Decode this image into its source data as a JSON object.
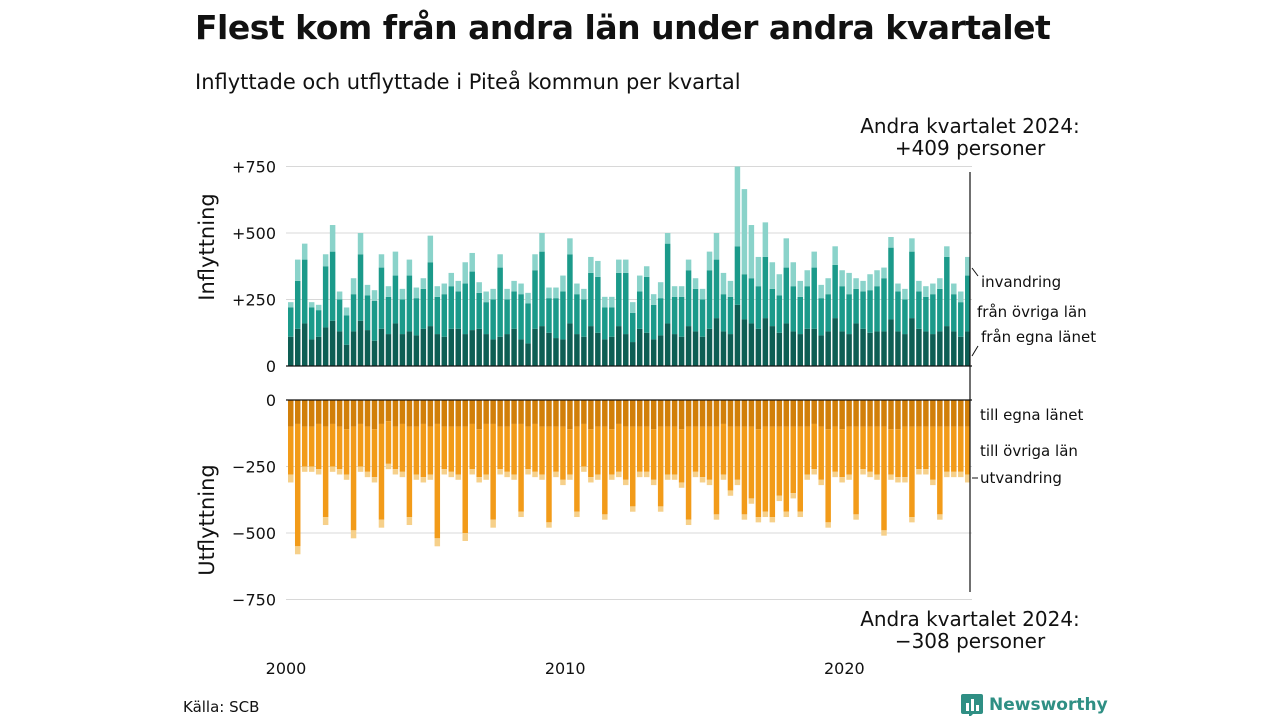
{
  "title": "Flest kom från andra län under andra kvartalet",
  "subtitle": "Inflyttade och utflyttade i Piteå kommun per kvartal",
  "source": "Källa: SCB",
  "brand": "Newsworthy",
  "colors": {
    "in_own": "#0e5e54",
    "in_other": "#1b9a8a",
    "in_abroad": "#8ad3ca",
    "out_own": "#d17f0a",
    "out_other": "#f29b19",
    "out_abroad": "#f6d08a",
    "brand": "#2f8f84"
  },
  "annotations": {
    "top": [
      "Andra kvartalet 2024:",
      "+409 personer"
    ],
    "bottom": [
      "Andra kvartalet 2024:",
      "−308 personer"
    ]
  },
  "chart_data": {
    "type": "bar",
    "stacked": true,
    "diverging": true,
    "x_start": "2000 Q1",
    "x_end": "2024 Q2",
    "x_ticks": [
      "2000",
      "2010",
      "2020"
    ],
    "inflow": {
      "ylabel": "Inflyttning",
      "yticks": [
        "+750",
        "+500",
        "+250",
        "0"
      ],
      "ylim": [
        0,
        750
      ],
      "series_names": [
        "från egna länet",
        "från övriga län",
        "invandring"
      ],
      "from_own_county": [
        110,
        140,
        160,
        100,
        110,
        145,
        170,
        130,
        80,
        130,
        170,
        135,
        95,
        140,
        120,
        160,
        120,
        130,
        115,
        140,
        150,
        120,
        110,
        140,
        140,
        120,
        135,
        140,
        120,
        100,
        110,
        120,
        140,
        100,
        85,
        140,
        150,
        125,
        105,
        100,
        160,
        120,
        110,
        150,
        125,
        100,
        110,
        150,
        120,
        90,
        140,
        125,
        100,
        115,
        160,
        120,
        110,
        150,
        130,
        110,
        140,
        180,
        130,
        120,
        230,
        175,
        160,
        140,
        180,
        150,
        125,
        160,
        130,
        120,
        140,
        140,
        115,
        130,
        180,
        130,
        120,
        160,
        140,
        125,
        130,
        130,
        175,
        130,
        120,
        180,
        140,
        130,
        120,
        130,
        150,
        130,
        110,
        130
      ],
      "from_other_counties": [
        110,
        180,
        240,
        120,
        100,
        230,
        260,
        120,
        110,
        140,
        250,
        130,
        150,
        230,
        140,
        180,
        130,
        210,
        140,
        150,
        240,
        140,
        160,
        160,
        140,
        190,
        220,
        135,
        120,
        150,
        260,
        130,
        140,
        170,
        150,
        220,
        280,
        130,
        150,
        180,
        260,
        150,
        140,
        200,
        210,
        120,
        110,
        200,
        230,
        110,
        140,
        210,
        130,
        140,
        300,
        140,
        150,
        210,
        160,
        140,
        220,
        220,
        140,
        140,
        220,
        170,
        170,
        160,
        230,
        140,
        140,
        210,
        170,
        140,
        160,
        230,
        140,
        140,
        200,
        170,
        150,
        130,
        140,
        160,
        170,
        200,
        270,
        150,
        130,
        250,
        140,
        130,
        150,
        160,
        260,
        140,
        130,
        210
      ],
      "immigration": [
        20,
        80,
        60,
        20,
        20,
        45,
        100,
        30,
        30,
        60,
        80,
        40,
        40,
        50,
        40,
        90,
        40,
        60,
        40,
        40,
        100,
        40,
        40,
        50,
        40,
        80,
        70,
        40,
        40,
        40,
        50,
        40,
        40,
        40,
        40,
        60,
        70,
        40,
        40,
        60,
        60,
        40,
        40,
        60,
        60,
        40,
        40,
        50,
        50,
        40,
        60,
        40,
        40,
        60,
        40,
        40,
        40,
        40,
        40,
        40,
        70,
        100,
        80,
        60,
        300,
        320,
        200,
        110,
        130,
        100,
        80,
        110,
        90,
        60,
        60,
        60,
        50,
        60,
        70,
        60,
        80,
        40,
        40,
        60,
        60,
        40,
        40,
        30,
        40,
        50,
        40,
        40,
        40,
        40,
        40,
        40,
        40,
        70
      ]
    },
    "outflow": {
      "ylabel": "Utflyttning",
      "yticks": [
        "0",
        "−250",
        "−500",
        "−750"
      ],
      "ylim": [
        -750,
        0
      ],
      "series_names": [
        "till egna länet",
        "till övriga län",
        "utvandring"
      ],
      "to_own_county": [
        -100,
        -90,
        -100,
        -100,
        -90,
        -100,
        -90,
        -100,
        -110,
        -100,
        -90,
        -100,
        -110,
        -90,
        -80,
        -100,
        -90,
        -100,
        -100,
        -90,
        -100,
        -90,
        -100,
        -100,
        -100,
        -100,
        -90,
        -110,
        -90,
        -90,
        -100,
        -100,
        -90,
        -90,
        -100,
        -90,
        -100,
        -100,
        -100,
        -100,
        -110,
        -100,
        -90,
        -110,
        -100,
        -100,
        -110,
        -90,
        -100,
        -100,
        -100,
        -100,
        -110,
        -100,
        -100,
        -100,
        -110,
        -100,
        -100,
        -100,
        -100,
        -100,
        -90,
        -100,
        -100,
        -100,
        -100,
        -110,
        -100,
        -100,
        -100,
        -100,
        -100,
        -100,
        -100,
        -90,
        -100,
        -110,
        -100,
        -110,
        -100,
        -100,
        -100,
        -100,
        -100,
        -100,
        -110,
        -110,
        -100,
        -100,
        -100,
        -100,
        -100,
        -100,
        -100,
        -100,
        -100,
        -100
      ],
      "to_other_counties": [
        -180,
        -460,
        -150,
        -150,
        -170,
        -340,
        -160,
        -160,
        -170,
        -390,
        -160,
        -170,
        -180,
        -360,
        -160,
        -160,
        -180,
        -340,
        -180,
        -200,
        -180,
        -430,
        -160,
        -170,
        -180,
        -400,
        -170,
        -180,
        -190,
        -360,
        -160,
        -170,
        -190,
        -330,
        -160,
        -180,
        -180,
        -360,
        -170,
        -200,
        -170,
        -320,
        -160,
        -180,
        -180,
        -330,
        -170,
        -180,
        -200,
        -300,
        -170,
        -170,
        -190,
        -300,
        -180,
        -180,
        -200,
        -350,
        -170,
        -190,
        -200,
        -330,
        -190,
        -240,
        -200,
        -330,
        -270,
        -330,
        -320,
        -340,
        -260,
        -320,
        -250,
        -320,
        -180,
        -170,
        -200,
        -350,
        -170,
        -180,
        -180,
        -330,
        -160,
        -170,
        -180,
        -390,
        -170,
        -180,
        -190,
        -340,
        -160,
        -160,
        -200,
        -330,
        -170,
        -170,
        -170,
        -180
      ],
      "emigration": [
        -30,
        -30,
        -20,
        -20,
        -20,
        -30,
        -20,
        -20,
        -20,
        -30,
        -20,
        -20,
        -20,
        -30,
        -20,
        -20,
        -20,
        -30,
        -20,
        -20,
        -20,
        -30,
        -20,
        -20,
        -20,
        -30,
        -20,
        -20,
        -20,
        -30,
        -20,
        -20,
        -20,
        -20,
        -20,
        -20,
        -20,
        -20,
        -20,
        -20,
        -20,
        -20,
        -20,
        -20,
        -20,
        -20,
        -20,
        -20,
        -20,
        -20,
        -20,
        -20,
        -20,
        -20,
        -20,
        -20,
        -20,
        -20,
        -20,
        -20,
        -20,
        -20,
        -20,
        -20,
        -20,
        -20,
        -20,
        -20,
        -20,
        -20,
        -20,
        -20,
        -20,
        -20,
        -20,
        -20,
        -20,
        -20,
        -20,
        -20,
        -20,
        -20,
        -20,
        -20,
        -20,
        -20,
        -20,
        -20,
        -20,
        -20,
        -20,
        -20,
        -20,
        -20,
        -20,
        -20,
        -20,
        -30
      ]
    },
    "series_labels_in": [
      "invandring",
      "från övriga län",
      "från egna länet"
    ],
    "series_labels_out": [
      "till egna länet",
      "till övriga län",
      "utvandring"
    ],
    "grid": true
  }
}
